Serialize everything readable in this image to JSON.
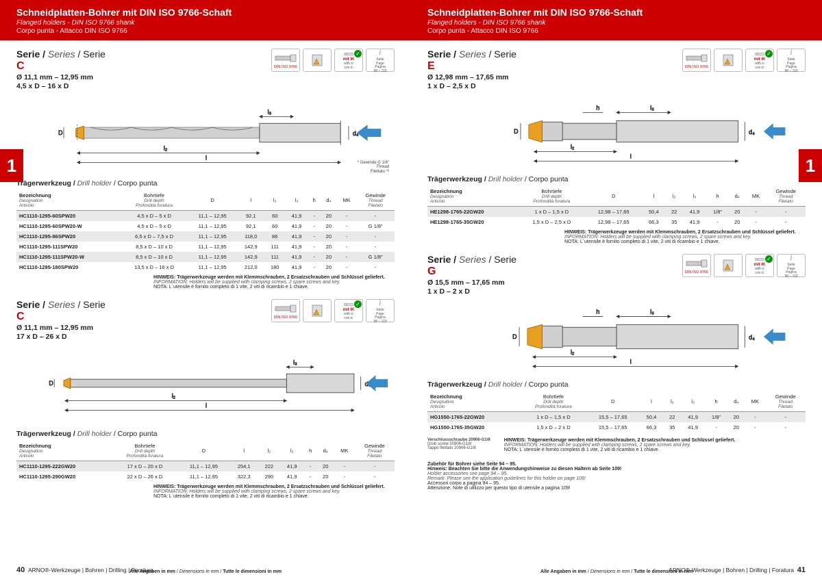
{
  "colors": {
    "brand_red": "#cc0000",
    "grey_row": "#e9e9e9",
    "blue_arrow": "#3a8bc9",
    "text": "#222222",
    "muted": "#555555",
    "border": "#bbbbbb",
    "green_check": "#009900"
  },
  "header": {
    "title": "Schneidplatten-Bohrer mit DIN ISO 9766-Schaft",
    "sub_it": "Flanged holders - DIN ISO 9766 shank",
    "sub": "Corpo punta - Attacco DIN ISO 9766"
  },
  "side_tab": "1",
  "series_label": {
    "bold": "Serie /",
    "it": "Series",
    "plain": "/ Serie"
  },
  "section_label": {
    "bold": "Trägerwerkzeug /",
    "it": "Drill holder",
    "plain": "/ Corpo punta"
  },
  "badges": {
    "din": "DIN ISO 9766",
    "mitik": "mit IK",
    "mitik_sub": "with ic\ncon ic",
    "info": "Seite\nPage\nPagina\n98 – 119",
    "info2": "Seite\nPage\nPagina\n98 – 119"
  },
  "diagram_labels": {
    "D": "D",
    "d4": "d₄",
    "l": "l",
    "l2": "l₂",
    "l3": "l₃",
    "h": "h"
  },
  "diagram_note": {
    "line1": "* Gewinde G 1/8\"",
    "line2": "Thread",
    "line3": "Filettato ⁰³"
  },
  "table_headers": {
    "bez": {
      "de": "Bezeichnung",
      "en": "Designation",
      "it": "Articolo"
    },
    "bohr": {
      "de": "Bohrtiefe",
      "en": "Drill depth",
      "it": "Profondità foratura"
    },
    "D": "D",
    "l": "l",
    "l2": "l₂",
    "l3": "l₃",
    "h": "h",
    "d4": "d₄",
    "MK": "MK",
    "gew": {
      "de": "Gewinde",
      "en": "Thread",
      "it": "Filetato"
    }
  },
  "hinweis": {
    "de": "HINWEIS: Trägerwerkzeuge werden mit Klemmschrauben, 2 Ersatzschrauben und Schlüssel geliefert.",
    "en": "INFORMATION: Holders will be supplied with clamping screws, 2 spare screws and key.",
    "it": "NOTA: L´utensile è fornito completo di 1 vite, 2 viti di ricambio e 1 chiave."
  },
  "series": {
    "C1": {
      "letter": "C",
      "range": "Ø 11,1 mm – 12,95 mm",
      "ratio": "4,5 x D – 16 x D",
      "rows": [
        [
          "HC1110-1295-60SPW20",
          "4,5 x D – 5 x D",
          "11,1 – 12,95",
          "92,1",
          "60",
          "41,9",
          "-",
          "20",
          "-",
          "-"
        ],
        [
          "HC1110-1295-60SPW20-W",
          "4,5 x D – 5 x D",
          "11,1 – 12,95",
          "92,1",
          "60",
          "41,9",
          "-",
          "20",
          "-",
          "G 1/8\""
        ],
        [
          "HC1110-1295-86SPW20",
          "6,5 x D – 7,5 x D",
          "11,1 – 12,95",
          "118,0",
          "86",
          "41,9",
          "-",
          "20",
          "-",
          "-"
        ],
        [
          "HC1110-1295-111SPW20",
          "8,5 x D – 10 x D",
          "11,1 – 12,95",
          "142,9",
          "111",
          "41,9",
          "-",
          "20",
          "-",
          "-"
        ],
        [
          "HC1110-1295-111SPW20-W",
          "8,5 x D – 10 x D",
          "11,1 – 12,95",
          "142,9",
          "111",
          "41,9",
          "-",
          "20",
          "-",
          "G 1/8\""
        ],
        [
          "HC1110-1295-180SPW20",
          "13,5 x D – 16 x D",
          "11,1 – 12,95",
          "212,0",
          "180",
          "41,9",
          "-",
          "20",
          "-",
          "-"
        ]
      ]
    },
    "C2": {
      "letter": "C",
      "range": "Ø 11,1 mm – 12,95 mm",
      "ratio": "17 x D – 26 x D",
      "rows": [
        [
          "HC1110-1295-222GW20",
          "17 x D – 20 x D",
          "11,1 – 12,95",
          "254,1",
          "222",
          "41,9",
          "-",
          "20",
          "-",
          "-"
        ],
        [
          "HC1110-1295-290GW20",
          "22 x D – 26 x D",
          "11,1 – 12,95",
          "322,3",
          "290",
          "41,9",
          "-",
          "20",
          "-",
          "-"
        ]
      ]
    },
    "E": {
      "letter": "E",
      "range": "Ø 12,98 mm – 17,65 mm",
      "ratio": "1 x D – 2,5 x D",
      "rows": [
        [
          "HE1298-1765-22GW20",
          "1 x D – 1,5 x D",
          "12,98 – 17,65",
          "50,4",
          "22",
          "41,9",
          "1/8\"",
          "20",
          "-",
          "-"
        ],
        [
          "HE1298-1765-35GW20",
          "1,5 x D – 2,5 x D",
          "12,98 – 17,65",
          "66,3",
          "35",
          "41,9",
          "-",
          "20",
          "-",
          "-"
        ]
      ]
    },
    "G": {
      "letter": "G",
      "range": "Ø 15,5 mm – 17,65 mm",
      "ratio": "1 x D – 2 x D",
      "rows": [
        [
          "HG1550-1765-22GW20",
          "1 x D – 1,5 x D",
          "15,5 – 17,65",
          "50,4",
          "22",
          "41,9",
          "1/8\"",
          "20",
          "-",
          "-"
        ],
        [
          "HG1550-1765-35GW20",
          "1,5 x D – 2 x D",
          "15,5 – 17,65",
          "66,3",
          "35",
          "41,9",
          "-",
          "20",
          "-",
          "-"
        ]
      ]
    }
  },
  "verschluss": {
    "l1": "Verschlussschraube 20906-G1/8",
    "l2": "Grub screw 20906-G1/8",
    "l3": "Tappo filettato 20906-G1/8"
  },
  "zubehor": {
    "l1": "Zubehör für Bohrer siehe Seite 94 – 95.",
    "l2": "Hinweis: Beachten Sie bitte die Anwendungshinweise zu diesen Haltern ab Seite 109!",
    "l3": "Holder accessories see page 94 – 95.",
    "l4": "Remark: Please see the application guidelines for this holder on page 109!",
    "l5": "Accessori corpo a pagina 94 – 95.",
    "l6": "Attenzione: Note di utilizzo per questo tipo di utensile a pagina 109!"
  },
  "footer": {
    "center": "Alle Angaben in mm",
    "center_it": "Dimensions in mm",
    "center_it2": "Tutte le dimensioni in mm",
    "brand": "ARNO®-Werkzeuge  |  Bohren | Drilling | Foratura",
    "pg_left": "40",
    "pg_right": "41"
  }
}
